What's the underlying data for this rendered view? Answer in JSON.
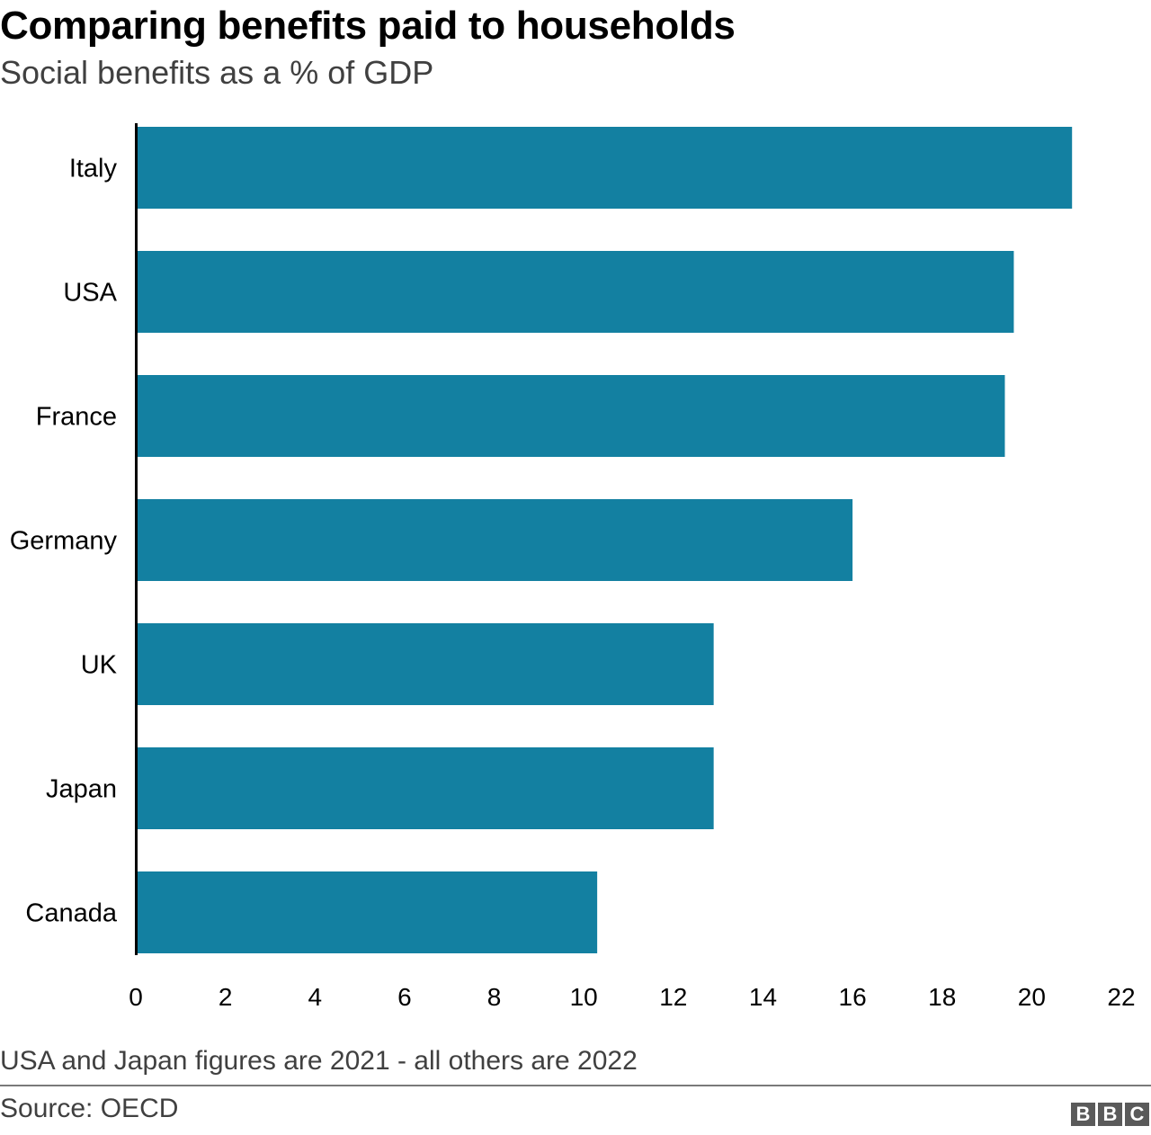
{
  "header": {
    "title": "Comparing benefits paid to households",
    "subtitle": "Social benefits as a % of GDP"
  },
  "footer": {
    "note": "USA and Japan figures are 2021 - all others are 2022",
    "source": "Source: OECD",
    "logo_letters": [
      "B",
      "B",
      "C"
    ]
  },
  "colors": {
    "bar": "#1380A1",
    "axis": "#000000",
    "logo_bg": "#5a5a5a"
  },
  "chart_data": {
    "type": "bar",
    "orientation": "horizontal",
    "title": "Comparing benefits paid to households",
    "subtitle": "Social benefits as a % of GDP",
    "xlabel": "",
    "ylabel": "",
    "categories": [
      "Italy",
      "USA",
      "France",
      "Germany",
      "UK",
      "Japan",
      "Canada"
    ],
    "values": [
      20.9,
      19.6,
      19.4,
      16.0,
      12.9,
      12.9,
      10.3
    ],
    "xlim": [
      0,
      22
    ],
    "xticks": [
      "0",
      "2",
      "4",
      "6",
      "8",
      "10",
      "12",
      "14",
      "16",
      "18",
      "20",
      "22"
    ],
    "grid": false,
    "legend": "none"
  }
}
